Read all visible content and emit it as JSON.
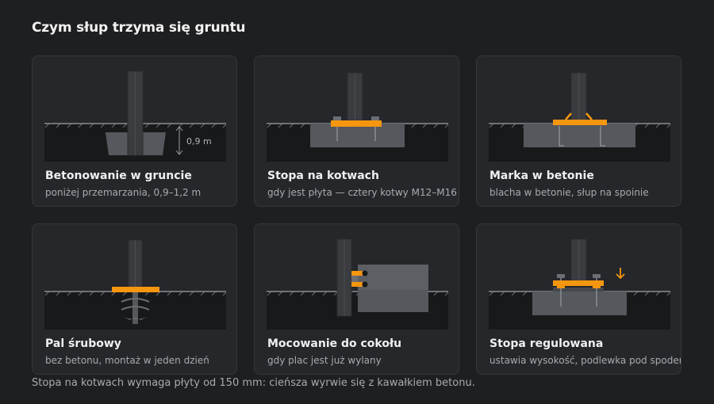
{
  "title": "Czym słup trzyma się gruntu",
  "cards": [
    {
      "title": "Betonowanie w gruncie",
      "subtitle": "poniżej przemarzania, 0,9–1,2 m",
      "icon": "post-in-concrete",
      "dimension_label": "0,9 m"
    },
    {
      "title": "Stopa na kotwach",
      "subtitle": "gdy jest płyta — cztery kotwy M12–M16",
      "icon": "anchored-base-plate"
    },
    {
      "title": "Marka w betonie",
      "subtitle": "blacha w betonie, słup na spoinie",
      "icon": "embedded-plate"
    },
    {
      "title": "Pal śrubowy",
      "subtitle": "bez betonu, montaż w jeden dzień",
      "icon": "screw-pile"
    },
    {
      "title": "Mocowanie do cokołu",
      "subtitle": "gdy plac jest już wylany",
      "icon": "plinth-side-mount"
    },
    {
      "title": "Stopa regulowana",
      "subtitle": "ustawia wysokość, podlewka pod spodem",
      "icon": "adjustable-base"
    }
  ],
  "footnote": "Stopa na kotwach wymaga płyty od 150 mm: cieńsza wyrwie się z kawałkiem betonu.",
  "colors": {
    "background": "#1e1f21",
    "card": "#25272a",
    "ground": "#18191b",
    "concrete": "#55585c",
    "post": "#3a3c40",
    "steel_accent": "#f5960f"
  }
}
